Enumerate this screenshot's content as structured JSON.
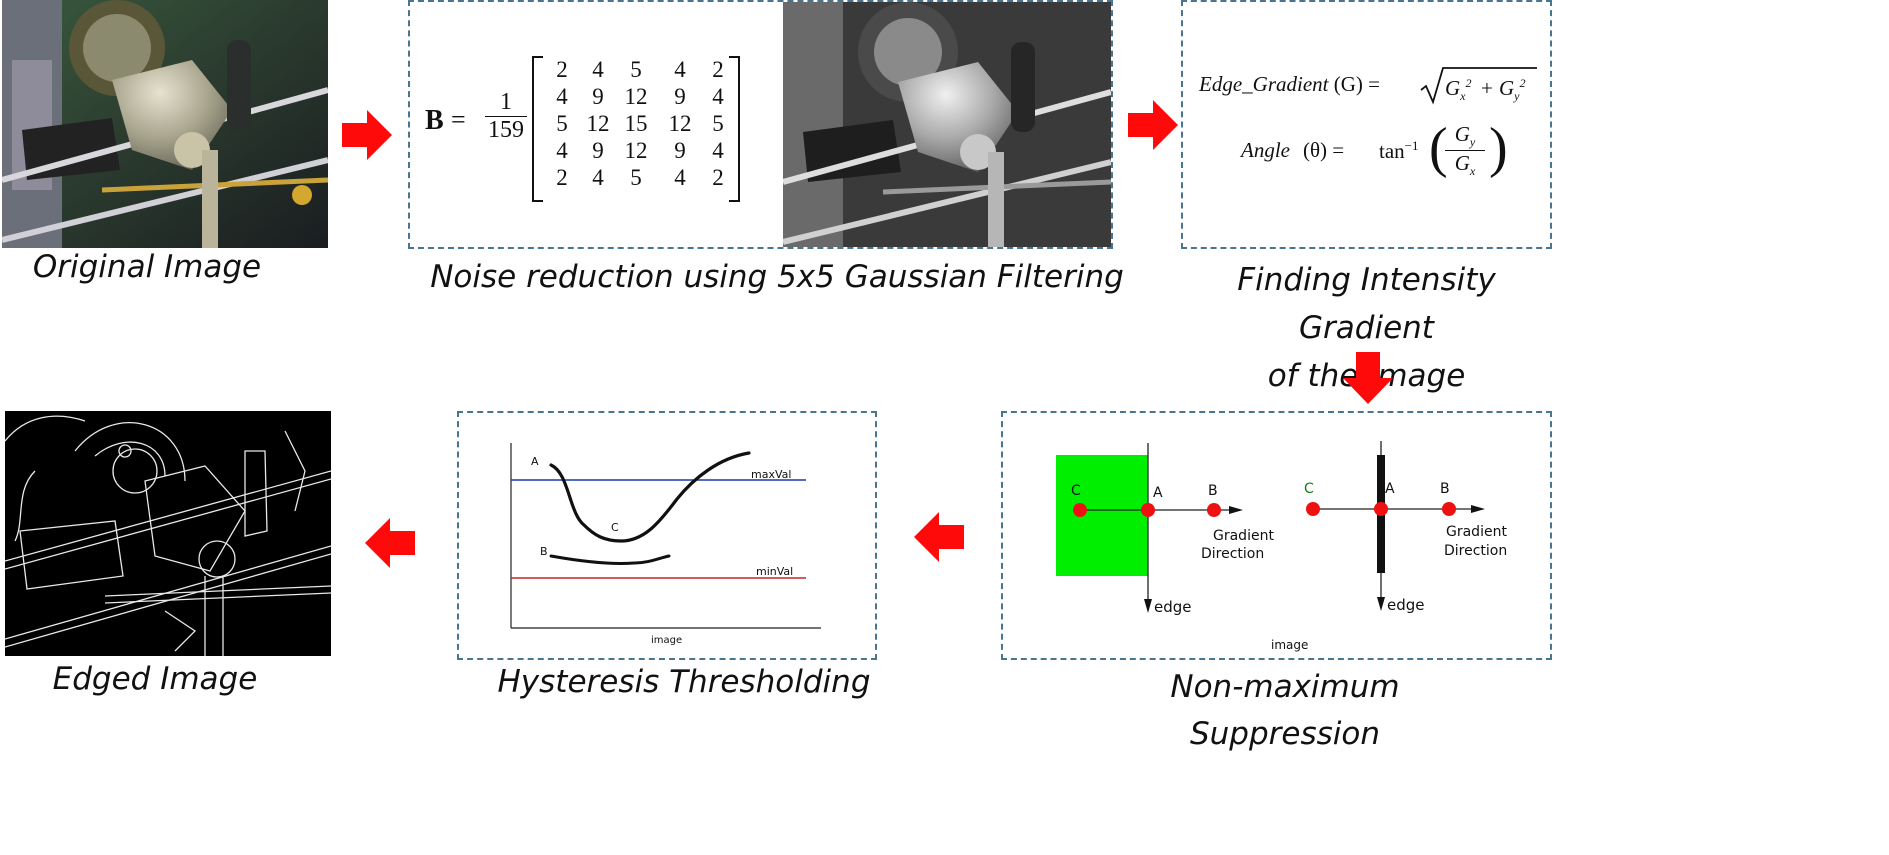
{
  "captions": {
    "original": "Original Image",
    "noise": "Noise reduction using 5x5 Gaussian Filtering",
    "gradient_line1": "Finding Intensity Gradient",
    "gradient_line2": "of the Image",
    "nms": "Non-maximum Suppression",
    "hysteresis": "Hysteresis Thresholding",
    "edged": "Edged Image"
  },
  "gaussian": {
    "lhs": "B",
    "equals": "=",
    "numerator": "1",
    "denominator": "159",
    "matrix": [
      [
        "2",
        "4",
        "5",
        "4",
        "2"
      ],
      [
        "4",
        "9",
        "12",
        "9",
        "4"
      ],
      [
        "5",
        "12",
        "15",
        "12",
        "5"
      ],
      [
        "4",
        "9",
        "12",
        "9",
        "4"
      ],
      [
        "2",
        "4",
        "5",
        "4",
        "2"
      ]
    ]
  },
  "gradient": {
    "edge_label": "Edge_Gradient",
    "edge_var": "(G) =",
    "gx": "G",
    "angle_label": "Angle",
    "angle_var": "(θ) =",
    "tan": "tan",
    "tan_exp": "−1"
  },
  "nms": {
    "left": {
      "c": "C",
      "a": "A",
      "b": "B",
      "dir1": "Gradient",
      "dir2": "Direction",
      "edge": "edge"
    },
    "right": {
      "c": "C",
      "a": "A",
      "b": "B",
      "dir1": "Gradient",
      "dir2": "Direction",
      "edge": "edge"
    },
    "axis": "image",
    "colors": {
      "green": "#00ee00",
      "point": "#ee1111"
    }
  },
  "hysteresis": {
    "maxval": "maxVal",
    "minval": "minVal",
    "a": "A",
    "b": "B",
    "c": "C",
    "axis": "image",
    "colors": {
      "max": "#1a3aa8",
      "min": "#c8222a"
    }
  },
  "colors": {
    "arrow": "#ff0a0a",
    "box_border": "#4a7591"
  }
}
